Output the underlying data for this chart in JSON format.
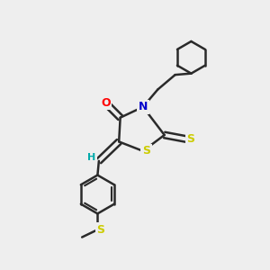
{
  "background_color": "#eeeeee",
  "bond_color": "#2a2a2a",
  "atom_colors": {
    "O": "#ff0000",
    "N": "#0000cc",
    "S": "#cccc00",
    "H": "#00aaaa"
  },
  "figsize": [
    3.0,
    3.0
  ],
  "dpi": 100
}
